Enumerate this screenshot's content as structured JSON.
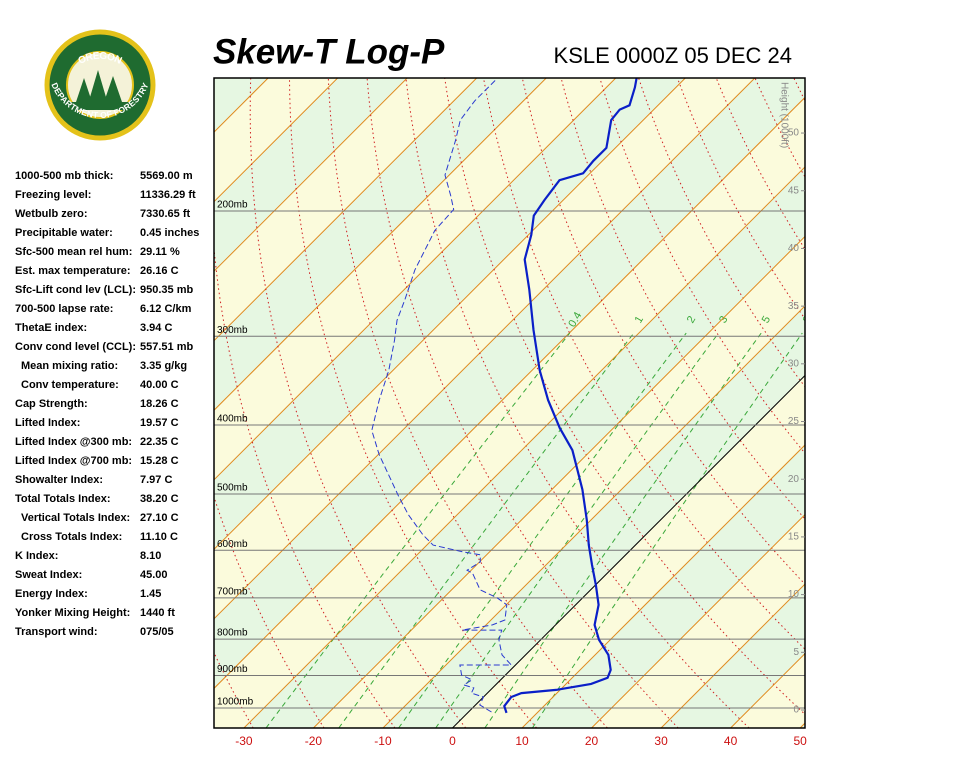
{
  "logo": {
    "top": "OREGON",
    "bottom": "DEPARTMENT OF FORESTRY"
  },
  "stats": [
    {
      "label": "1000-500 mb thick:",
      "value": "5569.00 m"
    },
    {
      "label": "Freezing level:",
      "value": "11336.29 ft"
    },
    {
      "label": "Wetbulb zero:",
      "value": "7330.65 ft"
    },
    {
      "label": "Precipitable water:",
      "value": "0.45 inches"
    },
    {
      "label": "Sfc-500 mean rel hum:",
      "value": "29.11 %"
    },
    {
      "label": "Est. max temperature:",
      "value": "26.16 C"
    },
    {
      "label": "Sfc-Lift cond lev (LCL):",
      "value": "950.35 mb"
    },
    {
      "label": "700-500 lapse rate:",
      "value": "6.12 C/km"
    },
    {
      "label": "ThetaE index:",
      "value": "3.94 C"
    },
    {
      "label": "Conv cond level (CCL):",
      "value": "557.51 mb"
    },
    {
      "label": "Mean mixing ratio:",
      "value": "3.35 g/kg",
      "sub": true
    },
    {
      "label": "Conv temperature:",
      "value": "40.00 C",
      "sub": true
    },
    {
      "label": "Cap Strength:",
      "value": "18.26 C"
    },
    {
      "label": "Lifted Index:",
      "value": "19.57 C"
    },
    {
      "label": "Lifted Index @300 mb:",
      "value": "22.35 C"
    },
    {
      "label": "Lifted Index @700 mb:",
      "value": "15.28 C"
    },
    {
      "label": "Showalter Index:",
      "value": "7.97 C"
    },
    {
      "label": "Total Totals Index:",
      "value": "38.20 C"
    },
    {
      "label": "Vertical Totals Index:",
      "value": "27.10 C",
      "sub": true
    },
    {
      "label": "Cross Totals Index:",
      "value": "11.10 C",
      "sub": true
    },
    {
      "label": "K Index:",
      "value": "8.10"
    },
    {
      "label": "Sweat Index:",
      "value": "45.00"
    },
    {
      "label": "Energy Index:",
      "value": "1.45"
    },
    {
      "label": "Yonker Mixing Height:",
      "value": "1440 ft"
    },
    {
      "label": "Transport wind:",
      "value": "075/05"
    }
  ],
  "chart_data": {
    "type": "skewt",
    "title": "Skew-T Log-P",
    "subtitle": "KSLE 0000Z 05 DEC 24",
    "y2label": "Height (1000ft)",
    "xlim": [
      -34.3,
      50.7
    ],
    "xticks": [
      -30,
      -20,
      -10,
      0,
      10,
      20,
      30,
      40,
      50
    ],
    "ylim": [
      1067,
      130
    ],
    "log_y": true,
    "yticks": [
      {
        "value": 200,
        "label": "200mb"
      },
      {
        "value": 300,
        "label": "300mb"
      },
      {
        "value": 400,
        "label": "400mb"
      },
      {
        "value": 500,
        "label": "500mb"
      },
      {
        "value": 600,
        "label": "600mb"
      },
      {
        "value": 700,
        "label": "700mb"
      },
      {
        "value": 800,
        "label": "800mb"
      },
      {
        "value": 900,
        "label": "900mb"
      },
      {
        "value": 1000,
        "label": "1000mb"
      }
    ],
    "y2lim": [
      -1.56,
      54.77
    ],
    "y2ticks": [
      0,
      5,
      10,
      15,
      20,
      25,
      30,
      35,
      40,
      45,
      50
    ],
    "mixing_ratios": [
      0.4,
      1,
      2,
      3,
      5,
      8
    ],
    "series": [
      {
        "color": "#0a1fc8",
        "dash": false,
        "pressure": [
          1016,
          994,
          965,
          953,
          943,
          925,
          907,
          884,
          842,
          802,
          764,
          716,
          672,
          629,
          590,
          544,
          493,
          463,
          434,
          404,
          369,
          335,
          294,
          258,
          234,
          216,
          203,
          193,
          181,
          177,
          170,
          163,
          149,
          144,
          142,
          134,
          130
        ],
        "temperature": [
          5.6,
          4.3,
          4.0,
          4.9,
          9.4,
          13.6,
          15.1,
          14.4,
          11.9,
          8.4,
          5.6,
          3.3,
          0.1,
          -3.4,
          -6.7,
          -10.6,
          -15.6,
          -19.1,
          -22.7,
          -27.7,
          -33.4,
          -38.9,
          -45.6,
          -52,
          -57,
          -59.6,
          -62,
          -62.7,
          -63.4,
          -61,
          -61.3,
          -61.3,
          -64.6,
          -64.9,
          -64.1,
          -65.9,
          -67
        ]
      },
      {
        "color": "#2a3ad0",
        "dash": true,
        "pressure": [
          1013,
          990,
          965,
          953,
          937,
          928,
          913,
          899,
          870,
          870,
          842,
          802,
          777,
          777,
          777,
          764,
          752,
          716,
          700,
          682,
          646,
          640,
          623,
          609,
          603,
          590,
          571,
          535,
          502,
          470,
          440,
          407,
          369,
          335,
          304,
          285,
          267,
          242,
          227,
          213,
          199,
          190,
          178,
          159,
          149,
          140,
          131
        ],
        "temperature": [
          3.3,
          0.6,
          0,
          -2.3,
          -2.7,
          -4.6,
          -4.1,
          -6.3,
          -8,
          -0.6,
          -3.4,
          -6,
          -7,
          -9.9,
          -12.7,
          -9.1,
          -8,
          -9.9,
          -12.3,
          -15.9,
          -19.4,
          -20.6,
          -19.9,
          -20.9,
          -23.9,
          -29.1,
          -32,
          -37,
          -41.3,
          -45.6,
          -49.9,
          -54.4,
          -57.7,
          -60.6,
          -64.1,
          -66.6,
          -68.4,
          -71.3,
          -72.7,
          -74.1,
          -74.4,
          -76.9,
          -80.6,
          -84.1,
          -86.3,
          -87,
          -87
        ]
      }
    ]
  }
}
